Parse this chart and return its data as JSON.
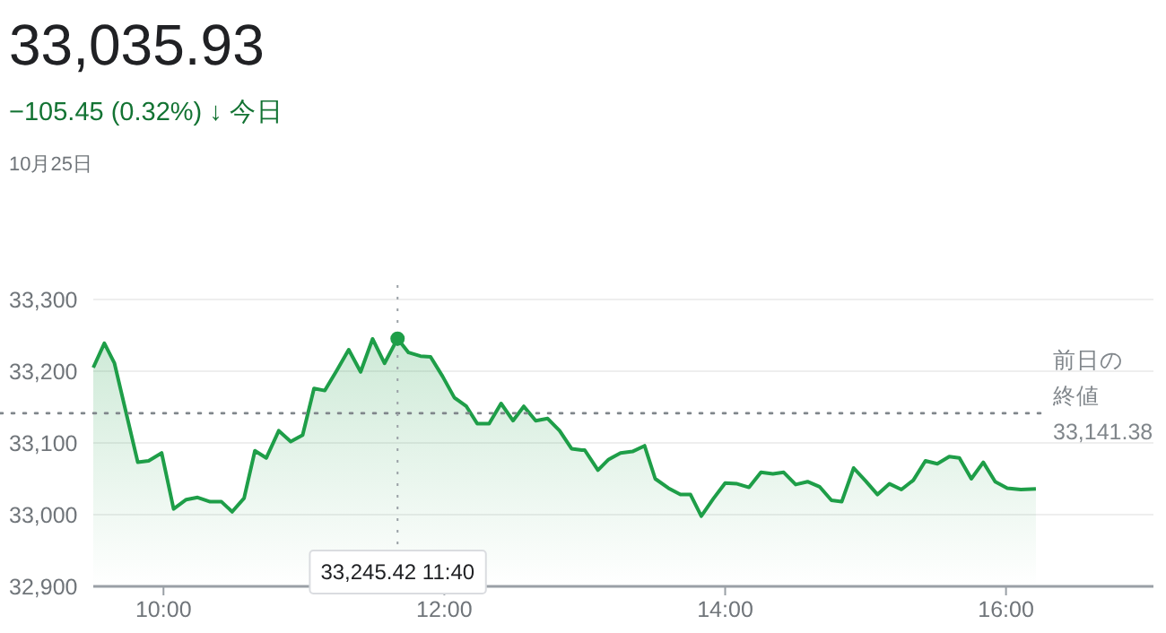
{
  "chart_data": {
    "type": "area",
    "title": "33,035.93",
    "subtitle": "−105.45 (0.32%) ↓ 今日",
    "annotations": [
      "10月25日",
      "33,245.42 11:40"
    ],
    "series": [
      {
        "color": "#1e9e48",
        "x": [
          9.5,
          9.579,
          9.651,
          9.817,
          9.894,
          9.987,
          10.072,
          10.162,
          10.243,
          10.332,
          10.413,
          10.489,
          10.574,
          10.651,
          10.732,
          10.821,
          10.906,
          10.991,
          11.072,
          11.149,
          11.234,
          11.319,
          11.404,
          11.489,
          11.574,
          11.667,
          11.745,
          11.83,
          11.902,
          11.987,
          12.072,
          12.157,
          12.234,
          12.319,
          12.404,
          12.489,
          12.566,
          12.651,
          12.736,
          12.821,
          12.906,
          12.979,
          13.0,
          13.094,
          13.17,
          13.255,
          13.34,
          13.426,
          13.502,
          13.596,
          13.681,
          13.753,
          13.83,
          13.915,
          14.0,
          14.085,
          14.17,
          14.255,
          14.34,
          14.417,
          14.502,
          14.587,
          14.672,
          14.757,
          14.83,
          14.915,
          15.0,
          15.085,
          15.17,
          15.255,
          15.34,
          15.426,
          15.511,
          15.596,
          15.668,
          15.753,
          15.838,
          15.923,
          16.009,
          16.106,
          16.213
        ],
        "values": [
          33205,
          33239,
          33211,
          33073,
          33075,
          33086,
          33008,
          33021,
          33024,
          33018,
          33018,
          33004,
          33023,
          33089,
          33079,
          33117,
          33102,
          33111,
          33176,
          33173,
          33201,
          33230,
          33199,
          33245,
          33211,
          33245.42,
          33226,
          33221,
          33220,
          33193,
          33163,
          33151,
          33127,
          33127,
          33155,
          33131,
          33151,
          33131,
          33134,
          33117,
          33092,
          33090,
          33090,
          33062,
          33077,
          33086,
          33088,
          33096,
          33050,
          33037,
          33028,
          33028,
          32998,
          33022,
          33044,
          33043,
          33038,
          33059,
          33057,
          33059,
          33042,
          33046,
          33039,
          33020,
          33018,
          33065,
          33047,
          33028,
          33043,
          33035,
          33048,
          33075,
          33071,
          33081,
          33079,
          33050,
          33073,
          33046,
          33037,
          33035,
          33036
        ]
      }
    ],
    "xlim": [
      9.5,
      17.05
    ],
    "ylim": [
      32900,
      33300
    ],
    "xticks": [
      {
        "value": 10,
        "label": "10:00"
      },
      {
        "value": 12,
        "label": "12:00"
      },
      {
        "value": 14,
        "label": "14:00"
      },
      {
        "value": 16,
        "label": "16:00"
      }
    ],
    "yticks": [
      {
        "value": 32900,
        "label": "32,900"
      },
      {
        "value": 33000,
        "label": "33,000"
      },
      {
        "value": 33100,
        "label": "33,100"
      },
      {
        "value": 33200,
        "label": "33,200"
      },
      {
        "value": 33300,
        "label": "33,300"
      }
    ],
    "grid": "y",
    "ref_lines": [
      {
        "axis": "y",
        "value": 33141.38,
        "label": "前日の終値 33,141.38",
        "color": "#80868b",
        "line_style": "dotted"
      },
      {
        "axis": "x",
        "value": 11.667,
        "color": "#9aa0a6",
        "line_style": "dotted"
      }
    ]
  }
}
